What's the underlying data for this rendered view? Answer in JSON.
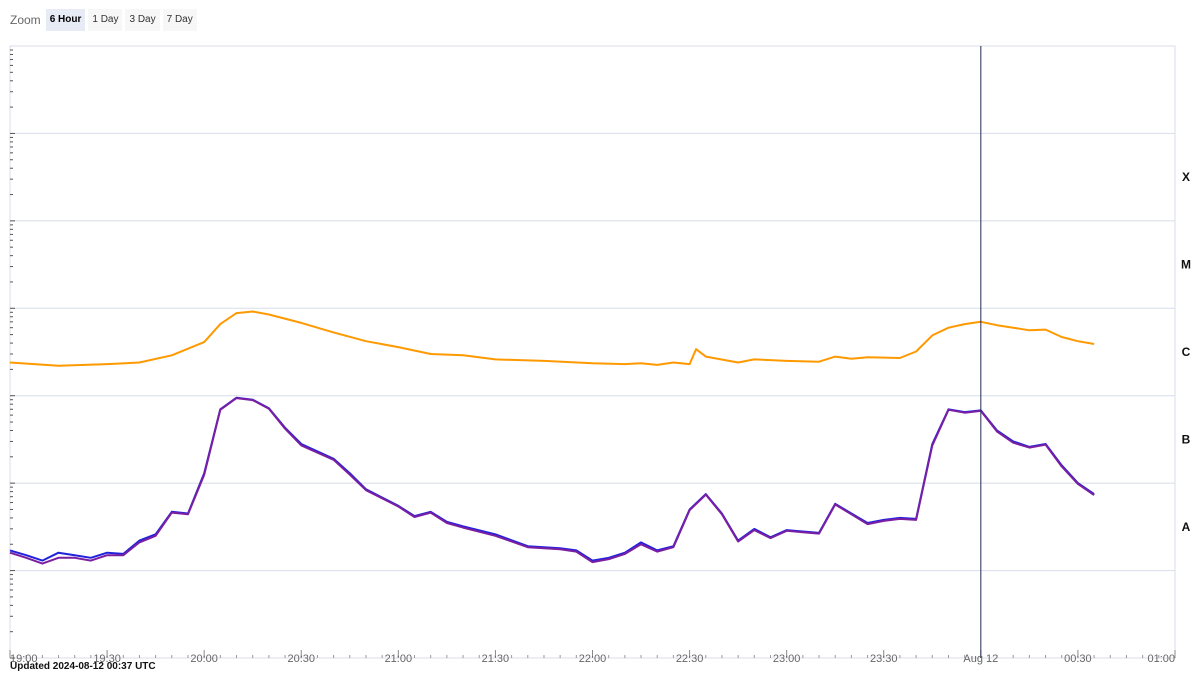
{
  "zoom": {
    "label": "Zoom",
    "buttons": [
      "6 Hour",
      "1 Day",
      "3 Day",
      "7 Day"
    ],
    "active": "6 Hour"
  },
  "updated_text": "Updated 2024-08-12 00:37 UTC",
  "colors": {
    "long_channel": "#ff9900",
    "short_channel_a": "#2222dd",
    "short_channel_b": "#7a1fa2",
    "grid": "#d8dde8",
    "crosshair": "#222a55"
  },
  "chart_data": {
    "type": "line",
    "title": "",
    "xlabel": "",
    "ylabel": "",
    "y_scale": "log",
    "ylim": [
      1e-09,
      0.01
    ],
    "xlim": [
      "19:00",
      "01:00"
    ],
    "x_ticks": [
      "19:00",
      "19:30",
      "20:00",
      "20:30",
      "21:00",
      "21:30",
      "22:00",
      "22:30",
      "23:00",
      "23:30",
      "Aug 12",
      "00:30",
      "01:00"
    ],
    "flare_classes": [
      "X",
      "M",
      "C",
      "B",
      "A"
    ],
    "crosshair_time": "00:00",
    "series": [
      {
        "color": "#ff9900",
        "x": [
          "19:00",
          "19:15",
          "19:30",
          "19:40",
          "19:50",
          "20:00",
          "20:05",
          "20:10",
          "20:15",
          "20:20",
          "20:30",
          "20:40",
          "20:50",
          "21:00",
          "21:10",
          "21:20",
          "21:30",
          "21:45",
          "22:00",
          "22:10",
          "22:15",
          "22:20",
          "22:25",
          "22:30",
          "22:32",
          "22:35",
          "22:45",
          "22:50",
          "23:00",
          "23:10",
          "23:15",
          "23:20",
          "23:25",
          "23:35",
          "23:40",
          "23:45",
          "23:50",
          "23:55",
          "00:00",
          "00:05",
          "00:10",
          "00:15",
          "00:20",
          "00:25",
          "00:30",
          "00:35"
        ],
        "y": [
          2.4e-06,
          2.2e-06,
          2.3e-06,
          2.4e-06,
          2.9e-06,
          4.1e-06,
          6.6e-06,
          8.8e-06,
          9.2e-06,
          8.5e-06,
          6.8e-06,
          5.3e-06,
          4.2e-06,
          3.6e-06,
          3e-06,
          2.9e-06,
          2.6e-06,
          2.5e-06,
          2.35e-06,
          2.3e-06,
          2.35e-06,
          2.25e-06,
          2.4e-06,
          2.3e-06,
          3.4e-06,
          2.8e-06,
          2.4e-06,
          2.6e-06,
          2.5e-06,
          2.45e-06,
          2.8e-06,
          2.65e-06,
          2.75e-06,
          2.7e-06,
          3.2e-06,
          4.9e-06,
          6e-06,
          6.6e-06,
          7e-06,
          6.4e-06,
          6e-06,
          5.6e-06,
          5.7e-06,
          4.7e-06,
          4.2e-06,
          3.9e-06
        ]
      },
      {
        "color": "#2222dd",
        "x": [
          "19:00",
          "19:05",
          "19:10",
          "19:15",
          "19:20",
          "19:25",
          "19:30",
          "19:35",
          "19:40",
          "19:45",
          "19:50",
          "19:55",
          "20:00",
          "20:05",
          "20:10",
          "20:15",
          "20:20",
          "20:25",
          "20:30",
          "20:40",
          "20:45",
          "20:50",
          "21:00",
          "21:05",
          "21:10",
          "21:15",
          "21:20",
          "21:30",
          "21:40",
          "21:50",
          "21:55",
          "22:00",
          "22:05",
          "22:10",
          "22:15",
          "22:20",
          "22:25",
          "22:30",
          "22:35",
          "22:40",
          "22:45",
          "22:50",
          "22:55",
          "23:00",
          "23:05",
          "23:10",
          "23:15",
          "23:20",
          "23:25",
          "23:30",
          "23:35",
          "23:40",
          "23:45",
          "23:50",
          "23:55",
          "00:00",
          "00:05",
          "00:10",
          "00:15",
          "00:20",
          "00:25",
          "00:30",
          "00:35"
        ],
        "y": [
          1.7e-08,
          1.5e-08,
          1.3e-08,
          1.6e-08,
          1.5e-08,
          1.4e-08,
          1.6e-08,
          1.55e-08,
          2.2e-08,
          2.6e-08,
          4.7e-08,
          4.5e-08,
          1.3e-07,
          7e-07,
          9.5e-07,
          9e-07,
          7.2e-07,
          4.3e-07,
          2.8e-07,
          1.9e-07,
          1.3e-07,
          8.5e-08,
          5.5e-08,
          4.2e-08,
          4.7e-08,
          3.6e-08,
          3.2e-08,
          2.6e-08,
          1.9e-08,
          1.8e-08,
          1.7e-08,
          1.3e-08,
          1.4e-08,
          1.6e-08,
          2.1e-08,
          1.7e-08,
          1.9e-08,
          5e-08,
          7.5e-08,
          4.5e-08,
          2.2e-08,
          3e-08,
          2.4e-08,
          2.9e-08,
          2.8e-08,
          2.7e-08,
          5.8e-08,
          4.5e-08,
          3.5e-08,
          3.8e-08,
          4e-08,
          3.9e-08,
          2.8e-07,
          7e-07,
          6.5e-07,
          6.8e-07,
          4e-07,
          3e-07,
          2.6e-07,
          2.8e-07,
          1.6e-07,
          1e-07,
          7.5e-08
        ]
      },
      {
        "color": "#7a1fa2",
        "x": [
          "19:00",
          "19:05",
          "19:10",
          "19:15",
          "19:20",
          "19:25",
          "19:30",
          "19:35",
          "19:40",
          "19:45",
          "19:50",
          "19:55",
          "20:00",
          "20:05",
          "20:10",
          "20:15",
          "20:20",
          "20:25",
          "20:30",
          "20:40",
          "20:45",
          "20:50",
          "21:00",
          "21:05",
          "21:10",
          "21:15",
          "21:20",
          "21:30",
          "21:40",
          "21:50",
          "21:55",
          "22:00",
          "22:05",
          "22:10",
          "22:15",
          "22:20",
          "22:25",
          "22:30",
          "22:35",
          "22:40",
          "22:45",
          "22:50",
          "22:55",
          "23:00",
          "23:05",
          "23:10",
          "23:15",
          "23:20",
          "23:25",
          "23:30",
          "23:35",
          "23:40",
          "23:45",
          "23:50",
          "23:55",
          "00:00",
          "00:05",
          "00:10",
          "00:15",
          "00:20",
          "00:25",
          "00:30",
          "00:35"
        ],
        "y": [
          1.6e-08,
          1.4e-08,
          1.2e-08,
          1.4e-08,
          1.4e-08,
          1.3e-08,
          1.5e-08,
          1.5e-08,
          2.1e-08,
          2.5e-08,
          4.6e-08,
          4.4e-08,
          1.25e-07,
          6.9e-07,
          9.4e-07,
          8.9e-07,
          7.1e-07,
          4.2e-07,
          2.7e-07,
          1.85e-07,
          1.25e-07,
          8.3e-08,
          5.4e-08,
          4.1e-08,
          4.6e-08,
          3.5e-08,
          3.1e-08,
          2.5e-08,
          1.85e-08,
          1.75e-08,
          1.65e-08,
          1.25e-08,
          1.35e-08,
          1.55e-08,
          2e-08,
          1.65e-08,
          1.85e-08,
          4.9e-08,
          7.4e-08,
          4.4e-08,
          2.15e-08,
          2.9e-08,
          2.35e-08,
          2.85e-08,
          2.75e-08,
          2.65e-08,
          5.7e-08,
          4.4e-08,
          3.4e-08,
          3.7e-08,
          3.9e-08,
          3.8e-08,
          2.7e-07,
          6.9e-07,
          6.4e-07,
          6.7e-07,
          3.9e-07,
          2.9e-07,
          2.55e-07,
          2.75e-07,
          1.55e-07,
          9.8e-08,
          7.3e-08
        ]
      }
    ]
  }
}
